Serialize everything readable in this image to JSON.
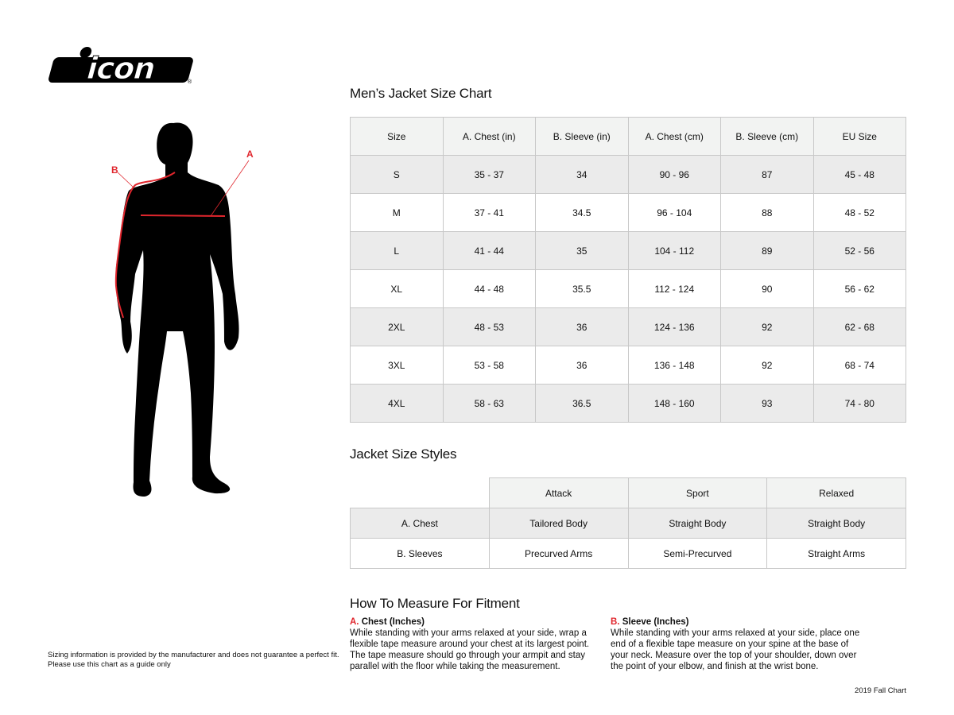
{
  "brand": {
    "logo_text": "icon",
    "accent": "#e0262d"
  },
  "figure": {
    "label_a": "A",
    "label_b": "B"
  },
  "size_chart": {
    "title": "Men’s Jacket Size Chart",
    "headers": [
      "Size",
      "A. Chest (in)",
      "B. Sleeve (in)",
      "A. Chest (cm)",
      "B. Sleeve (cm)",
      "EU Size"
    ],
    "rows": [
      [
        "S",
        "35 - 37",
        "34",
        "90 - 96",
        "87",
        "45 - 48"
      ],
      [
        "M",
        "37 - 41",
        "34.5",
        "96 - 104",
        "88",
        "48 - 52"
      ],
      [
        "L",
        "41 - 44",
        "35",
        "104 - 112",
        "89",
        "52 - 56"
      ],
      [
        "XL",
        "44 - 48",
        "35.5",
        "112 - 124",
        "90",
        "56 - 62"
      ],
      [
        "2XL",
        "48 - 53",
        "36",
        "124 - 136",
        "92",
        "62 - 68"
      ],
      [
        "3XL",
        "53 - 58",
        "36",
        "136 - 148",
        "92",
        "68 - 74"
      ],
      [
        "4XL",
        "58 - 63",
        "36.5",
        "148 - 160",
        "93",
        "74 - 80"
      ]
    ]
  },
  "styles": {
    "title": "Jacket Size Styles",
    "headers": [
      "",
      "Attack",
      "Sport",
      "Relaxed"
    ],
    "rows": [
      [
        "A. Chest",
        "Tailored Body",
        "Straight Body",
        "Straight Body"
      ],
      [
        "B. Sleeves",
        "Precurved Arms",
        "Semi-Precurved",
        "Straight Arms"
      ]
    ]
  },
  "fitment": {
    "title": "How To Measure For Fitment",
    "chest": {
      "letter": "A.",
      "heading": "Chest (Inches)",
      "text": "While standing with your arms relaxed at your side, wrap a flexible tape measure around your chest at its largest point. The tape measure should go through your armpit and stay parallel with the floor while taking the measurement."
    },
    "sleeve": {
      "letter": "B.",
      "heading": "Sleeve (Inches)",
      "text": "While standing with your arms relaxed at your side, place one end of a flexible tape measure on your spine at the base of your neck. Measure over the top of your shoulder, down over the point of your elbow, and finish at the wrist bone."
    }
  },
  "disclaimer": {
    "line1": "Sizing information is provided by the manufacturer and does not guarantee a perfect fit.",
    "line2": "Please use this chart as a guide only"
  },
  "footer": "2019 Fall Chart"
}
